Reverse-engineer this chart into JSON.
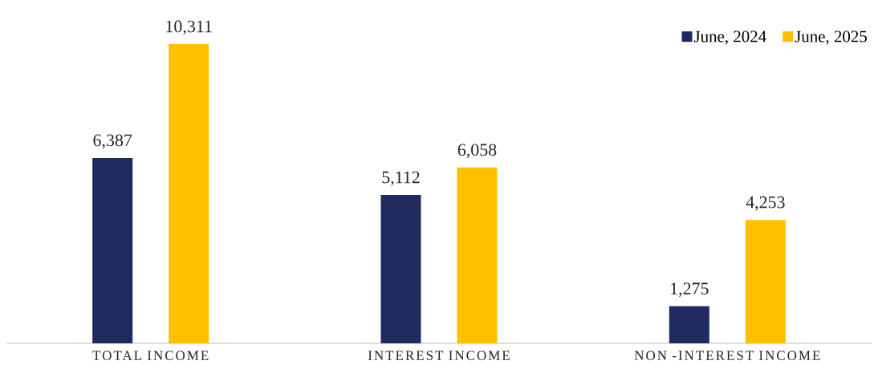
{
  "chart_data": {
    "type": "bar",
    "categories": [
      "TOTAL INCOME",
      "INTEREST INCOME",
      "NON -INTEREST INCOME"
    ],
    "series": [
      {
        "name": "June, 2024",
        "color": "#1f2a5e",
        "values": [
          6387,
          5112,
          1275
        ],
        "value_labels": [
          "6,387",
          "5,112",
          "1,275"
        ]
      },
      {
        "name": "June, 2025",
        "color": "#ffc000",
        "values": [
          10311,
          6058,
          4253
        ],
        "value_labels": [
          "10,311",
          "6,058",
          "4,253"
        ]
      }
    ],
    "legend": "top right"
  }
}
